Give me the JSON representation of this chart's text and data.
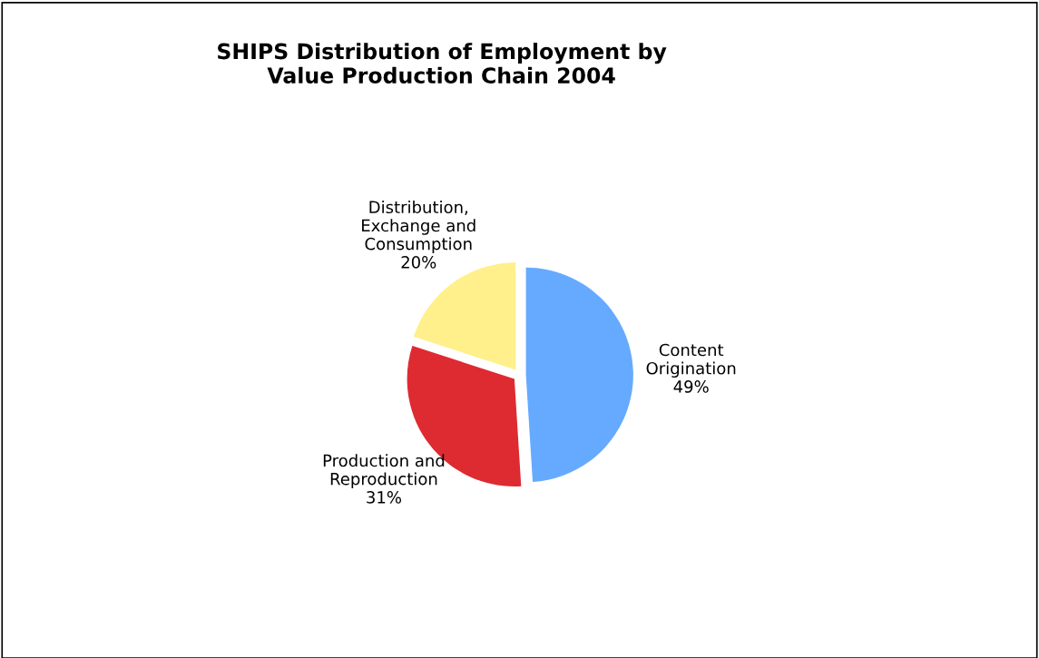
{
  "chart_data": {
    "type": "pie",
    "title": "SHIPS Distribution of Employment by\nValue Production Chain 2004",
    "categories": [
      "Content\nOrigination",
      "Production and\nReproduction",
      "Distribution,\nExchange and\nConsumption"
    ],
    "values": [
      49,
      31,
      20
    ],
    "value_labels": [
      "49%",
      "31%",
      "20%"
    ],
    "colors": [
      "#66aaff",
      "#dd2b31",
      "#fff08c"
    ]
  }
}
